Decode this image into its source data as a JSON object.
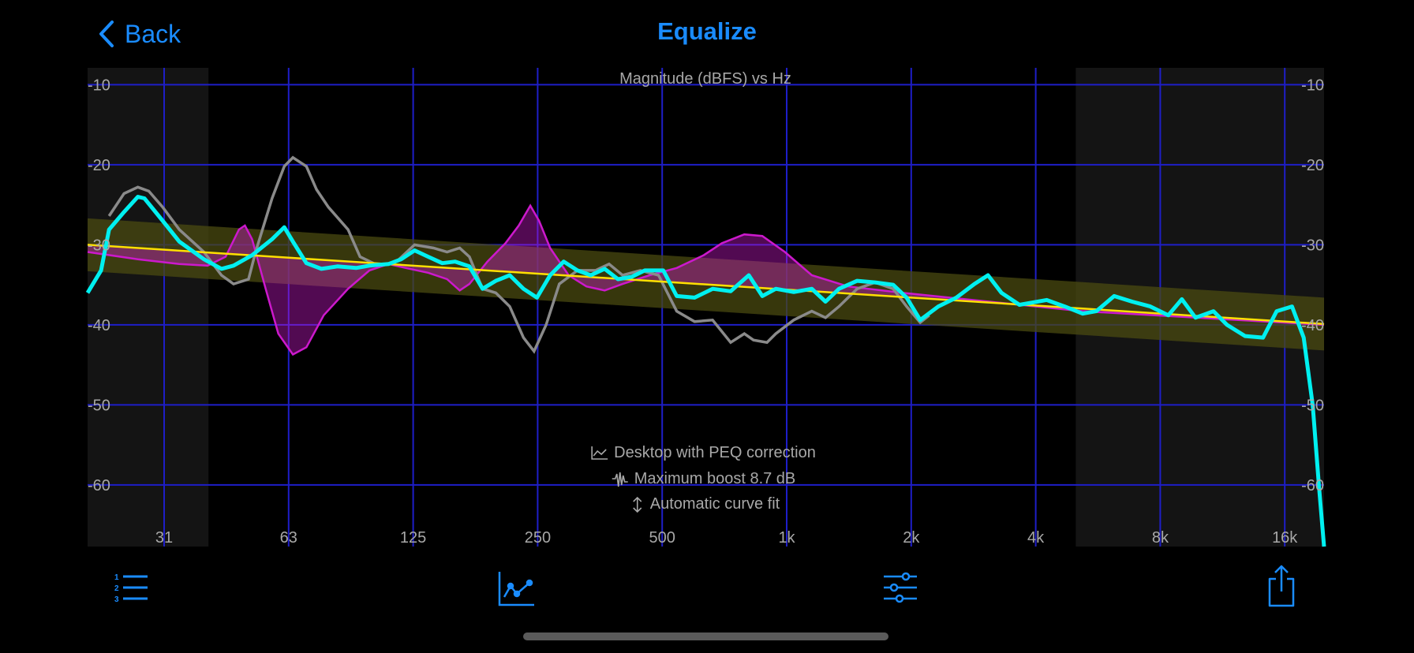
{
  "header": {
    "back_label": "Back",
    "title": "Equalize"
  },
  "toolbar": {
    "icons": [
      "numbered-list-icon",
      "graph-icon",
      "sliders-icon",
      "share-icon"
    ]
  },
  "colors": {
    "accent": "#1a8cff",
    "grid": "#1e1ec8",
    "measured": "#8a8a8a",
    "corrected": "#00f0f0",
    "eq": "#cc19cc",
    "target": "#ffe000",
    "target_band": "#4a4a10"
  },
  "chart_data": {
    "type": "line",
    "title": "Magnitude (dBFS) vs Hz",
    "x_scale": "log",
    "xlim": [
      20,
      20000
    ],
    "ylim": [
      -67,
      -8.5
    ],
    "x_ticks": [
      {
        "v": 31.25,
        "label": "31"
      },
      {
        "v": 62.5,
        "label": "63"
      },
      {
        "v": 125,
        "label": "125"
      },
      {
        "v": 250,
        "label": "250"
      },
      {
        "v": 500,
        "label": "500"
      },
      {
        "v": 1000,
        "label": "1k"
      },
      {
        "v": 2000,
        "label": "2k"
      },
      {
        "v": 4000,
        "label": "4k"
      },
      {
        "v": 8000,
        "label": "8k"
      },
      {
        "v": 16000,
        "label": "16k"
      }
    ],
    "y_ticks": [
      {
        "v": -10,
        "label": "-10"
      },
      {
        "v": -20,
        "label": "-20"
      },
      {
        "v": -30,
        "label": "-30"
      },
      {
        "v": -40,
        "label": "-40"
      },
      {
        "v": -50,
        "label": "-50"
      },
      {
        "v": -60,
        "label": "-60"
      }
    ],
    "grid": true,
    "shaded_ranges_hz": [
      [
        20,
        40
      ],
      [
        5000,
        20000
      ]
    ],
    "annotations": [
      {
        "icon": "line-chart-icon",
        "text": "Desktop with PEQ correction"
      },
      {
        "icon": "waveform-icon",
        "text": "Maximum boost 8.7 dB"
      },
      {
        "icon": "up-down-arrow-icon",
        "text": "Automatic curve fit"
      }
    ],
    "target": {
      "points": [
        [
          20,
          -30.0
        ],
        [
          20000,
          -39.9
        ]
      ],
      "band_db": 3.3
    },
    "series": [
      {
        "role": "measured",
        "points": [
          [
            23,
            -26.4
          ],
          [
            25,
            -23.6
          ],
          [
            27,
            -22.8
          ],
          [
            28.7,
            -23.3
          ],
          [
            31,
            -25.3
          ],
          [
            34,
            -28.1
          ],
          [
            39,
            -30.9
          ],
          [
            43,
            -33.8
          ],
          [
            46,
            -34.9
          ],
          [
            50,
            -34.3
          ],
          [
            52,
            -30.9
          ],
          [
            57,
            -24.2
          ],
          [
            61,
            -20.2
          ],
          [
            64,
            -19.1
          ],
          [
            69,
            -20.2
          ],
          [
            73,
            -23.1
          ],
          [
            78,
            -25.3
          ],
          [
            87,
            -28.1
          ],
          [
            93,
            -31.5
          ],
          [
            103,
            -32.6
          ],
          [
            114,
            -32.1
          ],
          [
            126,
            -30.0
          ],
          [
            140,
            -30.4
          ],
          [
            151,
            -30.9
          ],
          [
            162,
            -30.4
          ],
          [
            171,
            -31.5
          ],
          [
            184,
            -35.5
          ],
          [
            198,
            -36.0
          ],
          [
            214,
            -37.7
          ],
          [
            231,
            -41.6
          ],
          [
            245,
            -43.3
          ],
          [
            262,
            -40.0
          ],
          [
            282,
            -34.9
          ],
          [
            312,
            -33.2
          ],
          [
            345,
            -33.2
          ],
          [
            372,
            -32.4
          ],
          [
            401,
            -33.8
          ],
          [
            443,
            -33.2
          ],
          [
            490,
            -33.8
          ],
          [
            542,
            -38.3
          ],
          [
            599,
            -39.6
          ],
          [
            662,
            -39.4
          ],
          [
            732,
            -42.2
          ],
          [
            790,
            -41.1
          ],
          [
            831,
            -41.9
          ],
          [
            896,
            -42.2
          ],
          [
            941,
            -41.1
          ],
          [
            1040,
            -39.4
          ],
          [
            1150,
            -38.3
          ],
          [
            1241,
            -39.1
          ],
          [
            1338,
            -37.7
          ],
          [
            1480,
            -35.5
          ],
          [
            1636,
            -34.7
          ],
          [
            1809,
            -35.5
          ],
          [
            1950,
            -37.7
          ],
          [
            2103,
            -39.7
          ],
          [
            2212,
            -38.8
          ]
        ]
      },
      {
        "role": "eq",
        "points": [
          [
            20,
            -30.9
          ],
          [
            27,
            -31.8
          ],
          [
            34,
            -32.4
          ],
          [
            39.8,
            -32.6
          ],
          [
            44,
            -31.5
          ],
          [
            47.4,
            -28.1
          ],
          [
            49,
            -27.6
          ],
          [
            51,
            -29.3
          ],
          [
            55,
            -35.5
          ],
          [
            59,
            -41.1
          ],
          [
            64,
            -43.7
          ],
          [
            69,
            -42.8
          ],
          [
            76,
            -38.8
          ],
          [
            87,
            -35.5
          ],
          [
            98,
            -33.2
          ],
          [
            109,
            -32.4
          ],
          [
            120,
            -32.9
          ],
          [
            136,
            -33.5
          ],
          [
            151,
            -34.3
          ],
          [
            162,
            -35.7
          ],
          [
            171,
            -34.9
          ],
          [
            189,
            -32.1
          ],
          [
            209,
            -29.8
          ],
          [
            225,
            -27.6
          ],
          [
            240,
            -25.1
          ],
          [
            252,
            -27.0
          ],
          [
            268,
            -30.4
          ],
          [
            297,
            -33.8
          ],
          [
            328,
            -35.2
          ],
          [
            363,
            -35.7
          ],
          [
            401,
            -34.9
          ],
          [
            466,
            -33.8
          ],
          [
            542,
            -32.9
          ],
          [
            630,
            -31.3
          ],
          [
            697,
            -29.8
          ],
          [
            790,
            -28.7
          ],
          [
            873,
            -28.9
          ],
          [
            990,
            -30.9
          ],
          [
            1150,
            -33.8
          ],
          [
            1407,
            -35.2
          ],
          [
            1903,
            -36.0
          ],
          [
            5195,
            -38.3
          ],
          [
            19956,
            -40.0
          ]
        ]
      },
      {
        "role": "corrected",
        "points": [
          [
            20,
            -36.0
          ],
          [
            22,
            -33.2
          ],
          [
            23,
            -28.1
          ],
          [
            25,
            -25.9
          ],
          [
            27,
            -24.0
          ],
          [
            28,
            -24.2
          ],
          [
            31,
            -27.0
          ],
          [
            34,
            -29.6
          ],
          [
            39,
            -31.8
          ],
          [
            43,
            -33.0
          ],
          [
            46,
            -32.6
          ],
          [
            51,
            -31.3
          ],
          [
            57,
            -29.3
          ],
          [
            61,
            -27.8
          ],
          [
            64,
            -29.6
          ],
          [
            69,
            -32.3
          ],
          [
            75,
            -33.0
          ],
          [
            82,
            -32.7
          ],
          [
            91,
            -32.9
          ],
          [
            98,
            -32.6
          ],
          [
            109,
            -32.4
          ],
          [
            117,
            -31.8
          ],
          [
            126,
            -30.7
          ],
          [
            136,
            -31.5
          ],
          [
            147,
            -32.3
          ],
          [
            158,
            -32.1
          ],
          [
            171,
            -32.7
          ],
          [
            184,
            -35.5
          ],
          [
            198,
            -34.5
          ],
          [
            214,
            -33.8
          ],
          [
            231,
            -35.5
          ],
          [
            249,
            -36.6
          ],
          [
            268,
            -33.8
          ],
          [
            289,
            -32.1
          ],
          [
            312,
            -33.2
          ],
          [
            336,
            -33.8
          ],
          [
            363,
            -33.0
          ],
          [
            391,
            -34.3
          ],
          [
            422,
            -34.0
          ],
          [
            454,
            -33.2
          ],
          [
            503,
            -33.2
          ],
          [
            542,
            -36.4
          ],
          [
            599,
            -36.6
          ],
          [
            662,
            -35.5
          ],
          [
            732,
            -35.8
          ],
          [
            810,
            -33.8
          ],
          [
            873,
            -36.4
          ],
          [
            941,
            -35.5
          ],
          [
            1040,
            -35.9
          ],
          [
            1150,
            -35.5
          ],
          [
            1241,
            -37.1
          ],
          [
            1338,
            -35.5
          ],
          [
            1480,
            -34.5
          ],
          [
            1636,
            -34.7
          ],
          [
            1809,
            -35.0
          ],
          [
            1950,
            -36.6
          ],
          [
            2103,
            -39.4
          ],
          [
            2325,
            -37.7
          ],
          [
            2571,
            -36.6
          ],
          [
            2843,
            -34.9
          ],
          [
            3066,
            -33.8
          ],
          [
            3306,
            -36.0
          ],
          [
            3654,
            -37.5
          ],
          [
            4250,
            -36.9
          ],
          [
            4699,
            -37.7
          ],
          [
            5195,
            -38.6
          ],
          [
            5603,
            -38.3
          ],
          [
            6190,
            -36.4
          ],
          [
            6845,
            -37.1
          ],
          [
            7568,
            -37.7
          ],
          [
            8368,
            -38.8
          ],
          [
            9025,
            -36.8
          ],
          [
            9734,
            -39.1
          ],
          [
            10763,
            -38.3
          ],
          [
            11600,
            -40.0
          ],
          [
            12826,
            -41.4
          ],
          [
            14180,
            -41.6
          ],
          [
            15294,
            -38.3
          ],
          [
            16660,
            -37.7
          ],
          [
            17780,
            -41.6
          ],
          [
            18700,
            -50.1
          ],
          [
            19363,
            -60.2
          ],
          [
            19956,
            -67.7
          ]
        ]
      }
    ]
  }
}
